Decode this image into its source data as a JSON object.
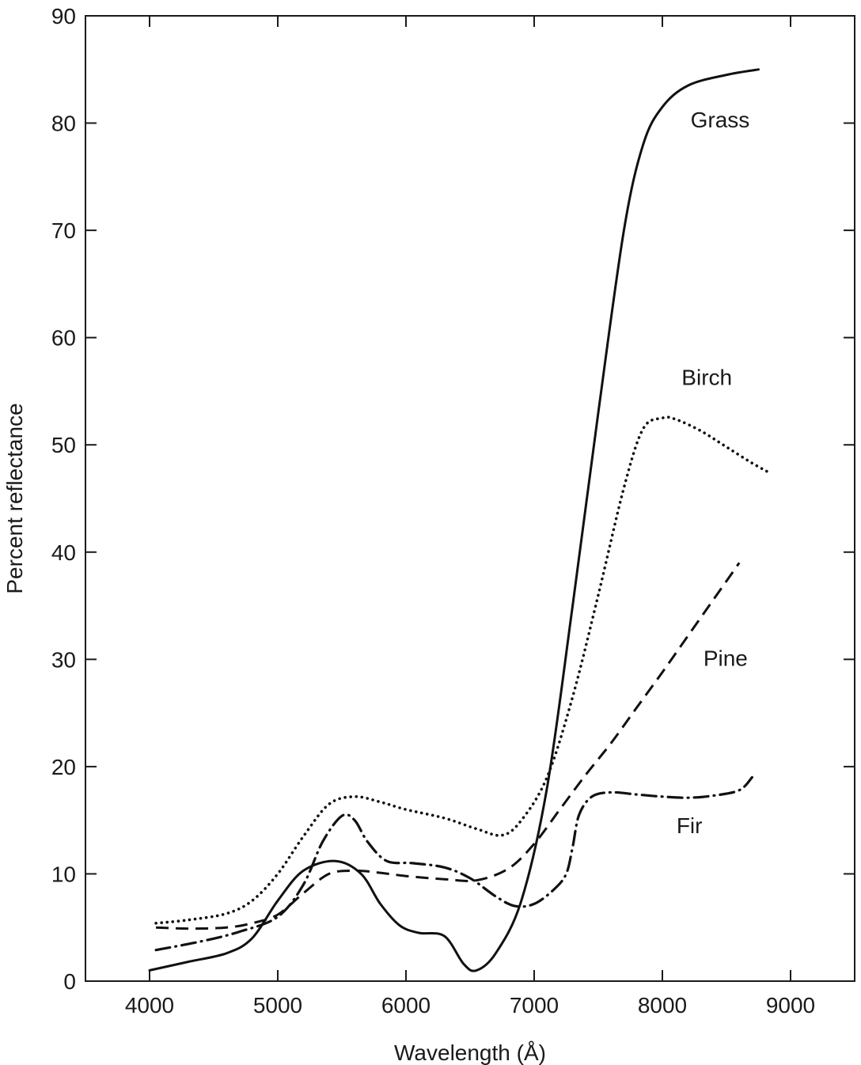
{
  "chart_data": {
    "type": "line",
    "title": "",
    "xlabel": "Wavelength (Å)",
    "ylabel": "Percent reflectance",
    "xlim": [
      3500,
      9500
    ],
    "ylim": [
      0,
      90
    ],
    "xticks": [
      4000,
      5000,
      6000,
      7000,
      8000,
      9000
    ],
    "yticks": [
      0,
      10,
      20,
      30,
      40,
      50,
      60,
      70,
      80,
      90
    ],
    "grid": false,
    "legend": "none (series labelled directly on the curves)",
    "series": [
      {
        "name": "Grass",
        "line_style": "solid",
        "x": [
          4000,
          4300,
          4600,
          4800,
          5000,
          5200,
          5450,
          5650,
          5800,
          5950,
          6100,
          6300,
          6450,
          6550,
          6700,
          6900,
          7100,
          7300,
          7500,
          7700,
          7850,
          8000,
          8200,
          8500,
          8750
        ],
        "y": [
          1,
          1.8,
          2.6,
          4,
          7.5,
          10.3,
          11.2,
          10,
          7.2,
          5.2,
          4.5,
          4.2,
          1.6,
          1,
          2.6,
          7.5,
          18,
          35,
          53,
          70,
          78,
          81.5,
          83.5,
          84.5,
          85
        ]
      },
      {
        "name": "Birch",
        "line_style": "dotted",
        "x": [
          4050,
          4300,
          4600,
          4800,
          5000,
          5200,
          5400,
          5600,
          5800,
          6000,
          6300,
          6550,
          6750,
          6900,
          7100,
          7300,
          7500,
          7700,
          7850,
          8000,
          8100,
          8300,
          8500,
          8700,
          8850
        ],
        "y": [
          5.4,
          5.7,
          6.3,
          7.5,
          10,
          13.5,
          16.5,
          17.2,
          16.7,
          16,
          15.2,
          14.2,
          13.6,
          15,
          19,
          26.5,
          36,
          46,
          51.5,
          52.5,
          52.4,
          51.3,
          49.8,
          48.3,
          47.3
        ]
      },
      {
        "name": "Pine",
        "line_style": "dashed",
        "x": [
          4050,
          4300,
          4600,
          4800,
          5000,
          5200,
          5400,
          5600,
          5800,
          6000,
          6300,
          6550,
          6800,
          7000,
          7200,
          7400,
          7600,
          7800,
          8000,
          8200,
          8400,
          8600
        ],
        "y": [
          5,
          4.9,
          5,
          5.4,
          6.2,
          8.2,
          10,
          10.3,
          10.1,
          9.8,
          9.5,
          9.4,
          10.5,
          12.8,
          16,
          19.2,
          22.2,
          25.5,
          28.8,
          32.2,
          35.6,
          39
        ]
      },
      {
        "name": "Fir",
        "line_style": "dash-dot",
        "x": [
          4050,
          4400,
          4700,
          5000,
          5200,
          5350,
          5500,
          5600,
          5700,
          5850,
          6050,
          6300,
          6500,
          6700,
          6850,
          7000,
          7150,
          7250,
          7300,
          7350,
          7450,
          7600,
          7800,
          8000,
          8200,
          8400,
          8600,
          8700
        ],
        "y": [
          2.9,
          3.7,
          4.6,
          6,
          9,
          13,
          15.4,
          15,
          13,
          11.2,
          11,
          10.6,
          9.6,
          7.9,
          7,
          7.2,
          8.5,
          10,
          12.5,
          15.5,
          17.2,
          17.6,
          17.4,
          17.2,
          17.1,
          17.3,
          17.8,
          19
        ]
      }
    ],
    "annotations": [
      "Grass",
      "Birch",
      "Pine",
      "Fir"
    ]
  }
}
